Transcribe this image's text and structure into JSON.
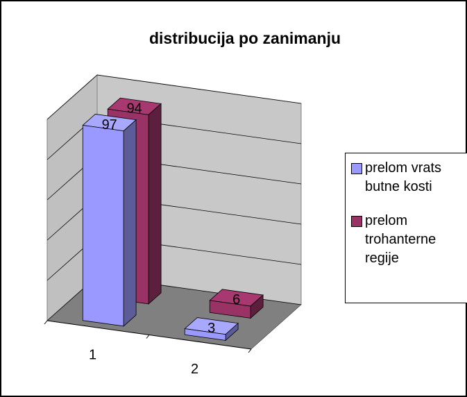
{
  "chart_data": {
    "type": "bar3d",
    "title": "distribucija po zanimanju",
    "categories": [
      "1",
      "2"
    ],
    "series": [
      {
        "name": "prelom vrats butne kosti",
        "color": "#9999ff",
        "values": [
          97,
          3
        ],
        "value_labels": [
          "97",
          "3"
        ]
      },
      {
        "name": "prelom trohanterne regije",
        "color": "#993366",
        "values": [
          94,
          6
        ],
        "value_labels": [
          "94",
          "6"
        ]
      }
    ],
    "ylim": [
      0,
      100
    ],
    "yticks": [
      0,
      20,
      40,
      60,
      80,
      100
    ],
    "grid": true,
    "legend": "right"
  }
}
